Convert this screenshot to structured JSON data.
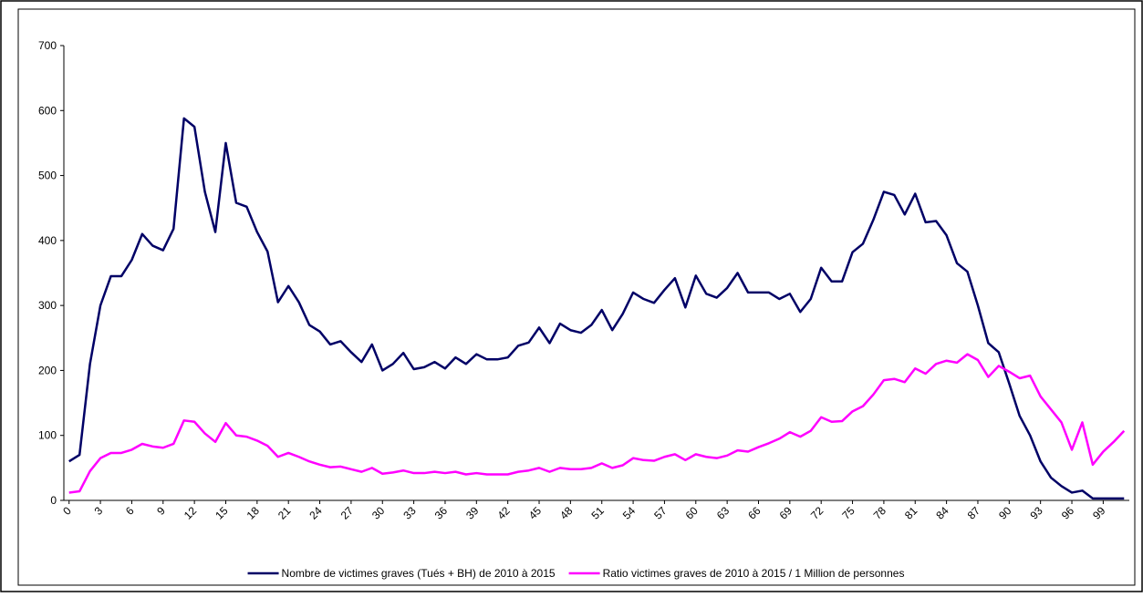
{
  "chart_data": {
    "type": "line",
    "categories": [
      0,
      null,
      null,
      3,
      null,
      null,
      6,
      null,
      null,
      9,
      null,
      null,
      12,
      null,
      null,
      15,
      null,
      null,
      18,
      null,
      null,
      21,
      null,
      null,
      24,
      null,
      null,
      27,
      null,
      null,
      30,
      null,
      null,
      33,
      null,
      null,
      36,
      null,
      null,
      39,
      null,
      null,
      42,
      null,
      null,
      45,
      null,
      null,
      48,
      null,
      null,
      51,
      null,
      null,
      54,
      null,
      null,
      57,
      null,
      null,
      60,
      null,
      null,
      63,
      null,
      null,
      66,
      null,
      null,
      69,
      null,
      null,
      72,
      null,
      null,
      75,
      null,
      null,
      78,
      null,
      null,
      81,
      null,
      null,
      84,
      null,
      null,
      87,
      null,
      null,
      90,
      null,
      null,
      93,
      null,
      null,
      96,
      null,
      null,
      99,
      null,
      null
    ],
    "series": [
      {
        "name": "Nombre de victimes graves  (Tués + BH) de 2010 à 2015",
        "color": "#000066",
        "values": [
          60,
          70,
          210,
          300,
          345,
          345,
          370,
          410,
          392,
          385,
          418,
          588,
          575,
          475,
          413,
          550,
          458,
          452,
          413,
          383,
          305,
          330,
          305,
          270,
          260,
          240,
          245,
          228,
          213,
          240,
          200,
          210,
          227,
          202,
          205,
          213,
          203,
          220,
          210,
          225,
          217,
          217,
          220,
          238,
          243,
          266,
          242,
          272,
          262,
          258,
          270,
          293,
          262,
          287,
          320,
          310,
          304,
          324,
          342,
          297,
          346,
          318,
          312,
          327,
          350,
          320,
          320,
          320,
          310,
          318,
          290,
          310,
          358,
          337,
          337,
          382,
          395,
          432,
          475,
          470,
          440,
          472,
          428,
          430,
          408,
          365,
          352,
          300,
          242,
          228,
          180,
          130,
          100,
          60,
          35,
          22,
          12,
          15,
          3,
          3,
          3,
          3
        ]
      },
      {
        "name": "Ratio victimes graves de  2010 à 2015 / 1 Million de personnes",
        "color": "#ff00ff",
        "values": [
          12,
          14,
          45,
          65,
          73,
          73,
          78,
          87,
          83,
          81,
          87,
          123,
          121,
          103,
          90,
          119,
          100,
          98,
          92,
          84,
          67,
          73,
          67,
          60,
          55,
          51,
          52,
          48,
          44,
          50,
          41,
          43,
          46,
          42,
          42,
          44,
          42,
          44,
          40,
          42,
          40,
          40,
          40,
          44,
          46,
          50,
          44,
          50,
          48,
          48,
          50,
          57,
          50,
          54,
          65,
          62,
          61,
          67,
          71,
          62,
          71,
          67,
          65,
          69,
          77,
          75,
          82,
          88,
          95,
          105,
          98,
          107,
          128,
          121,
          122,
          137,
          145,
          163,
          185,
          187,
          182,
          203,
          195,
          210,
          215,
          212,
          225,
          216,
          190,
          207,
          198,
          188,
          192,
          160,
          140,
          120,
          78,
          120,
          55,
          75,
          90,
          107
        ]
      }
    ],
    "ylim": [
      0,
      700
    ],
    "yticks": [
      0,
      100,
      200,
      300,
      400,
      500,
      600,
      700
    ],
    "grid": false,
    "legend": "bottom"
  }
}
